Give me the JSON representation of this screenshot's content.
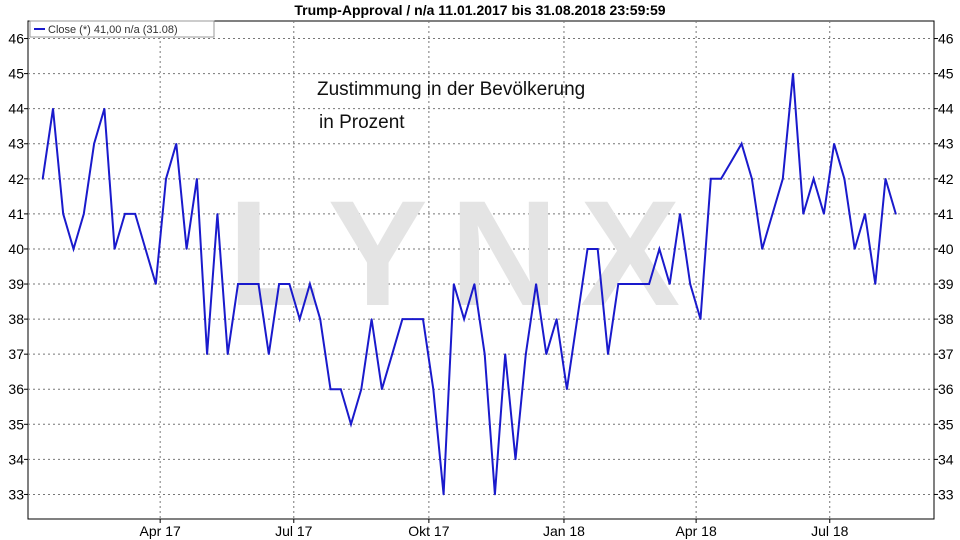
{
  "chart_data": {
    "type": "line",
    "title": "Trump-Approval / n/a 11.01.2017 bis 31.08.2018 23:59:59",
    "legend": "Close (*) 41,00 n/a (31.08)",
    "legend_placement": "top-left",
    "annotation_line1": "Zustimmung in der Bevölkerung",
    "annotation_line2": "in Prozent",
    "watermark": "LYNX",
    "grid": true,
    "series_color": "#1a1acc",
    "ylim": [
      32.3,
      46.5
    ],
    "yticks": [
      33,
      34,
      35,
      36,
      37,
      38,
      39,
      40,
      41,
      42,
      43,
      44,
      45,
      46
    ],
    "xlim": [
      "2017-01-01",
      "2018-09-10"
    ],
    "xticks": [
      {
        "date": "2017-04-01",
        "label": "Apr 17"
      },
      {
        "date": "2017-07-01",
        "label": "Jul 17"
      },
      {
        "date": "2017-10-01",
        "label": "Okt 17"
      },
      {
        "date": "2018-01-01",
        "label": "Jan 18"
      },
      {
        "date": "2018-04-01",
        "label": "Apr 18"
      },
      {
        "date": "2018-07-01",
        "label": "Jul 18"
      }
    ],
    "series": [
      {
        "values": [
          [
            "2017-01-11",
            42
          ],
          [
            "2017-01-18",
            44
          ],
          [
            "2017-01-25",
            41
          ],
          [
            "2017-02-01",
            40
          ],
          [
            "2017-02-08",
            41
          ],
          [
            "2017-02-15",
            43
          ],
          [
            "2017-02-22",
            44
          ],
          [
            "2017-03-01",
            40
          ],
          [
            "2017-03-08",
            41
          ],
          [
            "2017-03-15",
            41
          ],
          [
            "2017-03-22",
            40
          ],
          [
            "2017-03-29",
            39
          ],
          [
            "2017-04-05",
            42
          ],
          [
            "2017-04-12",
            43
          ],
          [
            "2017-04-19",
            40
          ],
          [
            "2017-04-26",
            42
          ],
          [
            "2017-05-03",
            37
          ],
          [
            "2017-05-10",
            41
          ],
          [
            "2017-05-17",
            37
          ],
          [
            "2017-05-24",
            39
          ],
          [
            "2017-05-31",
            39
          ],
          [
            "2017-06-07",
            39
          ],
          [
            "2017-06-14",
            37
          ],
          [
            "2017-06-21",
            39
          ],
          [
            "2017-06-28",
            39
          ],
          [
            "2017-07-05",
            38
          ],
          [
            "2017-07-12",
            39
          ],
          [
            "2017-07-19",
            38
          ],
          [
            "2017-07-26",
            36
          ],
          [
            "2017-08-02",
            36
          ],
          [
            "2017-08-09",
            35
          ],
          [
            "2017-08-16",
            36
          ],
          [
            "2017-08-23",
            38
          ],
          [
            "2017-08-30",
            36
          ],
          [
            "2017-09-06",
            37
          ],
          [
            "2017-09-13",
            38
          ],
          [
            "2017-09-20",
            38
          ],
          [
            "2017-09-27",
            38
          ],
          [
            "2017-10-04",
            36
          ],
          [
            "2017-10-11",
            33
          ],
          [
            "2017-10-18",
            39
          ],
          [
            "2017-10-25",
            38
          ],
          [
            "2017-11-01",
            39
          ],
          [
            "2017-11-08",
            37
          ],
          [
            "2017-11-15",
            33
          ],
          [
            "2017-11-22",
            37
          ],
          [
            "2017-11-29",
            34
          ],
          [
            "2017-12-06",
            37
          ],
          [
            "2017-12-13",
            39
          ],
          [
            "2017-12-20",
            37
          ],
          [
            "2017-12-27",
            38
          ],
          [
            "2018-01-03",
            36
          ],
          [
            "2018-01-10",
            38
          ],
          [
            "2018-01-17",
            40
          ],
          [
            "2018-01-24",
            40
          ],
          [
            "2018-01-31",
            37
          ],
          [
            "2018-02-07",
            39
          ],
          [
            "2018-02-14",
            39
          ],
          [
            "2018-02-21",
            39
          ],
          [
            "2018-02-28",
            39
          ],
          [
            "2018-03-07",
            40
          ],
          [
            "2018-03-14",
            39
          ],
          [
            "2018-03-21",
            41
          ],
          [
            "2018-03-28",
            39
          ],
          [
            "2018-04-04",
            38
          ],
          [
            "2018-04-11",
            42
          ],
          [
            "2018-04-18",
            42
          ],
          [
            "2018-04-25",
            42.5
          ],
          [
            "2018-05-02",
            43
          ],
          [
            "2018-05-09",
            42
          ],
          [
            "2018-05-16",
            40
          ],
          [
            "2018-05-23",
            41
          ],
          [
            "2018-05-30",
            42
          ],
          [
            "2018-06-06",
            45
          ],
          [
            "2018-06-13",
            41
          ],
          [
            "2018-06-20",
            42
          ],
          [
            "2018-06-27",
            41
          ],
          [
            "2018-07-04",
            43
          ],
          [
            "2018-07-11",
            42
          ],
          [
            "2018-07-18",
            40
          ],
          [
            "2018-07-25",
            41
          ],
          [
            "2018-08-01",
            39
          ],
          [
            "2018-08-08",
            42
          ],
          [
            "2018-08-15",
            41
          ]
        ]
      }
    ]
  }
}
